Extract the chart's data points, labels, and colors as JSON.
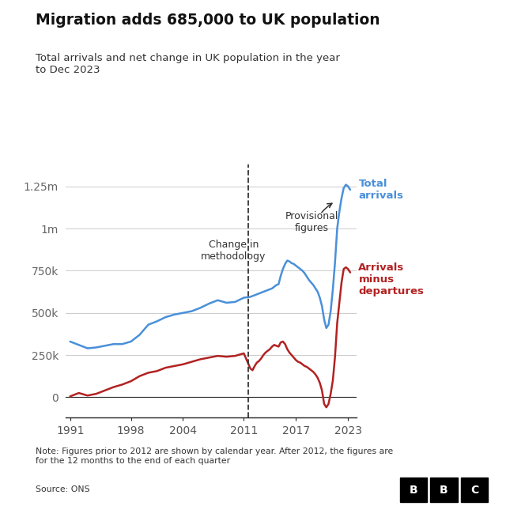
{
  "title": "Migration adds 685,000 to UK population",
  "subtitle": "Total arrivals and net change in UK population in the year\nto Dec 2023",
  "note": "Note: Figures prior to 2012 are shown by calendar year. After 2012, the figures are\nfor the 12 months to the end of each quarter",
  "source": "Source: ONS",
  "methodology_year": 2011.5,
  "blue_label": "Total\narrivals",
  "red_label": "Arrivals\nminus\ndepartures",
  "blue_color": "#4a90d9",
  "red_color": "#b22222",
  "grid_color": "#cccccc",
  "bg_color": "#ffffff",
  "title_color": "#111111",
  "yticks": [
    0,
    250000,
    500000,
    750000,
    1000000,
    1250000
  ],
  "ytick_labels": [
    "0",
    "250k",
    "500k",
    "750k",
    "1m",
    "1.25m"
  ],
  "xticks": [
    1991,
    1998,
    2004,
    2011,
    2017,
    2023
  ],
  "blue_x": [
    1991,
    1992,
    1993,
    1994,
    1995,
    1996,
    1997,
    1998,
    1999,
    2000,
    2001,
    2002,
    2003,
    2004,
    2005,
    2006,
    2007,
    2008,
    2009,
    2010,
    2011,
    2011.75,
    2012.0,
    2012.25,
    2012.5,
    2012.75,
    2013.0,
    2013.25,
    2013.5,
    2013.75,
    2014.0,
    2014.25,
    2014.5,
    2014.75,
    2015.0,
    2015.25,
    2015.5,
    2015.75,
    2016.0,
    2016.25,
    2016.5,
    2016.75,
    2017.0,
    2017.25,
    2017.5,
    2017.75,
    2018.0,
    2018.25,
    2018.5,
    2018.75,
    2019.0,
    2019.25,
    2019.5,
    2019.75,
    2020.0,
    2020.25,
    2020.5,
    2020.75,
    2021.0,
    2021.25,
    2021.5,
    2021.75,
    2022.0,
    2022.25,
    2022.5,
    2022.75,
    2023.0,
    2023.25
  ],
  "blue_y": [
    330000,
    310000,
    290000,
    295000,
    305000,
    315000,
    315000,
    330000,
    370000,
    430000,
    450000,
    475000,
    490000,
    500000,
    510000,
    530000,
    555000,
    575000,
    560000,
    565000,
    590000,
    595000,
    600000,
    605000,
    610000,
    615000,
    620000,
    625000,
    630000,
    635000,
    640000,
    645000,
    655000,
    665000,
    670000,
    720000,
    760000,
    790000,
    810000,
    805000,
    795000,
    790000,
    780000,
    770000,
    760000,
    750000,
    735000,
    715000,
    695000,
    680000,
    665000,
    645000,
    625000,
    590000,
    540000,
    460000,
    410000,
    430000,
    510000,
    640000,
    800000,
    1000000,
    1100000,
    1180000,
    1240000,
    1260000,
    1250000,
    1230000
  ],
  "red_x": [
    1991,
    1992,
    1993,
    1994,
    1995,
    1996,
    1997,
    1998,
    1999,
    2000,
    2001,
    2002,
    2003,
    2004,
    2005,
    2006,
    2007,
    2008,
    2009,
    2010,
    2011,
    2011.75,
    2012.0,
    2012.25,
    2012.5,
    2012.75,
    2013.0,
    2013.25,
    2013.5,
    2013.75,
    2014.0,
    2014.25,
    2014.5,
    2014.75,
    2015.0,
    2015.25,
    2015.5,
    2015.75,
    2016.0,
    2016.25,
    2016.5,
    2016.75,
    2017.0,
    2017.25,
    2017.5,
    2017.75,
    2018.0,
    2018.25,
    2018.5,
    2018.75,
    2019.0,
    2019.25,
    2019.5,
    2019.75,
    2020.0,
    2020.25,
    2020.5,
    2020.75,
    2021.0,
    2021.25,
    2021.5,
    2021.75,
    2022.0,
    2022.25,
    2022.5,
    2022.75,
    2023.0,
    2023.25
  ],
  "red_y": [
    5000,
    25000,
    10000,
    20000,
    40000,
    60000,
    75000,
    95000,
    125000,
    145000,
    155000,
    175000,
    185000,
    195000,
    210000,
    225000,
    235000,
    245000,
    240000,
    245000,
    260000,
    170000,
    160000,
    185000,
    205000,
    215000,
    230000,
    250000,
    265000,
    275000,
    285000,
    300000,
    310000,
    305000,
    300000,
    325000,
    330000,
    315000,
    285000,
    265000,
    250000,
    235000,
    220000,
    210000,
    205000,
    195000,
    185000,
    180000,
    170000,
    160000,
    150000,
    135000,
    115000,
    85000,
    40000,
    -40000,
    -60000,
    -40000,
    20000,
    100000,
    240000,
    440000,
    560000,
    680000,
    760000,
    770000,
    760000,
    740000
  ]
}
